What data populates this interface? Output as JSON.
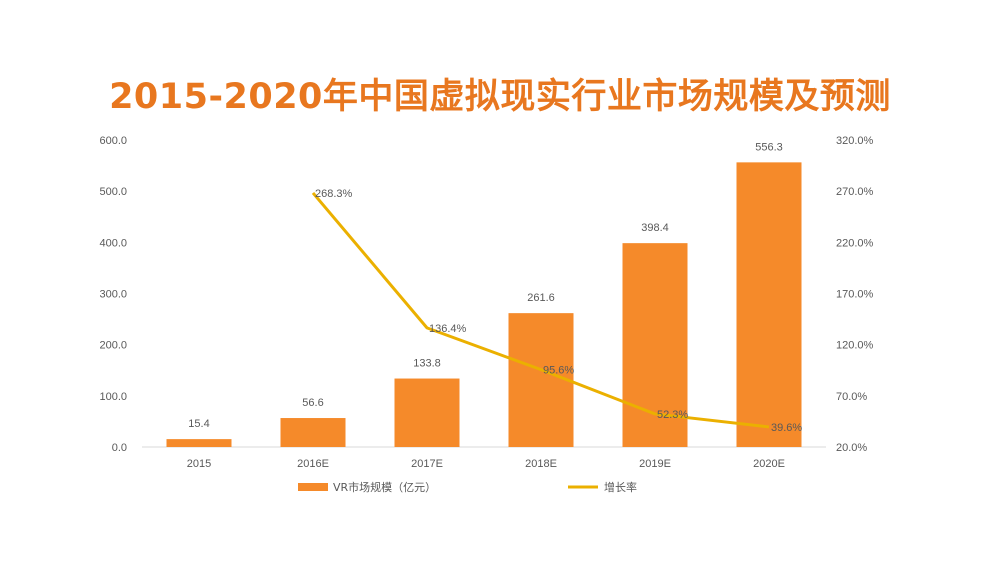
{
  "title": "2015-2020年中国虚拟现实行业市场规模及预测",
  "colors": {
    "title": "#E8771F",
    "bar": "#F58A2A",
    "line": "#EBB000",
    "text": "#595959"
  },
  "chart_data": {
    "type": "bar",
    "title": "2015-2020年中国虚拟现实行业市场规模及预测",
    "categories": [
      "2015",
      "2016E",
      "2017E",
      "2018E",
      "2019E",
      "2020E"
    ],
    "series": [
      {
        "name": "VR市场规模（亿元）",
        "type": "bar",
        "axis": "left",
        "values": [
          15.4,
          56.6,
          133.8,
          261.6,
          398.4,
          556.3
        ],
        "labels": [
          "15.4",
          "56.6",
          "133.8",
          "261.6",
          "398.4",
          "556.3"
        ]
      },
      {
        "name": "增长率",
        "type": "line",
        "axis": "right",
        "values": [
          null,
          268.3,
          136.4,
          95.6,
          52.3,
          39.6
        ],
        "labels": [
          "",
          "268.3%",
          "136.4%",
          "95.6%",
          "52.3%",
          "39.6%"
        ]
      }
    ],
    "y_left": {
      "min": 0,
      "max": 600,
      "ticks": [
        "0.0",
        "100.0",
        "200.0",
        "300.0",
        "400.0",
        "500.0",
        "600.0"
      ]
    },
    "y_right": {
      "min": 20,
      "max": 320,
      "ticks": [
        "20.0%",
        "70.0%",
        "120.0%",
        "170.0%",
        "220.0%",
        "270.0%",
        "320.0%"
      ]
    },
    "grid": false,
    "legend": "bottom"
  }
}
